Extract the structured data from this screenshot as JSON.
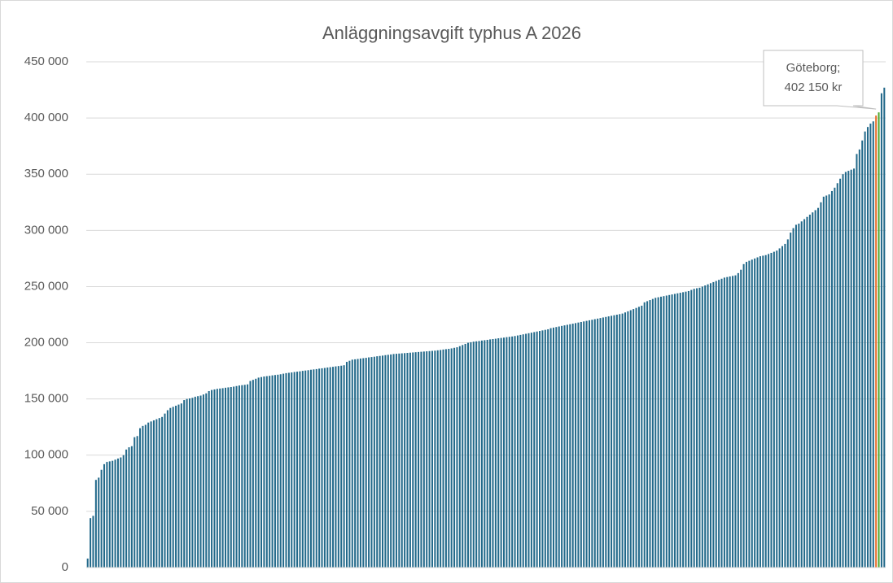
{
  "chart_data": {
    "type": "bar",
    "title": "Anläggningsavgift typhus A 2026",
    "values": [
      8000,
      44000,
      46000,
      78000,
      80000,
      87000,
      92000,
      94000,
      94500,
      95000,
      96000,
      97000,
      98000,
      100000,
      105000,
      107000,
      108000,
      116000,
      117000,
      124000,
      126000,
      127000,
      129000,
      130000,
      131000,
      132000,
      133000,
      134000,
      137000,
      140000,
      142000,
      143000,
      144000,
      145000,
      146000,
      149000,
      150000,
      150500,
      151000,
      152000,
      152500,
      153000,
      154000,
      155000,
      157000,
      158000,
      158500,
      159000,
      159300,
      159600,
      160000,
      160300,
      160600,
      161000,
      161500,
      162000,
      162300,
      162600,
      163000,
      166000,
      167000,
      168000,
      169000,
      169500,
      170000,
      170300,
      170600,
      171000,
      171300,
      171600,
      172000,
      172500,
      173000,
      173300,
      173600,
      174000,
      174300,
      174600,
      175000,
      175300,
      175600,
      176000,
      176300,
      176600,
      177000,
      177300,
      177600,
      178000,
      178300,
      178600,
      179000,
      179300,
      179600,
      180000,
      183000,
      184000,
      185000,
      185300,
      185600,
      186000,
      186300,
      186600,
      187000,
      187300,
      187600,
      188000,
      188300,
      188600,
      189000,
      189300,
      189600,
      190000,
      190200,
      190400,
      190600,
      190800,
      191000,
      191200,
      191400,
      191600,
      191800,
      192000,
      192200,
      192400,
      192600,
      192800,
      193000,
      193300,
      193600,
      194000,
      194300,
      194600,
      195000,
      195500,
      196000,
      197000,
      198000,
      199000,
      200000,
      200500,
      201000,
      201300,
      201600,
      202000,
      202300,
      202600,
      203000,
      203300,
      203600,
      204000,
      204300,
      204600,
      205000,
      205300,
      205600,
      206000,
      206500,
      207000,
      207500,
      208000,
      208500,
      209000,
      209500,
      210000,
      210500,
      211000,
      211500,
      212000,
      213000,
      213500,
      214000,
      214500,
      215000,
      215500,
      216000,
      216500,
      217000,
      217500,
      218000,
      218500,
      219000,
      219500,
      220000,
      220500,
      221000,
      221500,
      222000,
      222500,
      223000,
      223500,
      224000,
      224500,
      225000,
      225500,
      226000,
      227000,
      228000,
      229000,
      230000,
      231000,
      232000,
      233000,
      236000,
      237000,
      238000,
      239000,
      240000,
      240500,
      241000,
      241500,
      242000,
      242500,
      243000,
      243500,
      244000,
      244500,
      245000,
      245500,
      246000,
      247000,
      248000,
      248500,
      249000,
      250000,
      251000,
      252000,
      253000,
      254000,
      255000,
      256000,
      257000,
      258000,
      258500,
      259000,
      259500,
      260000,
      262000,
      265000,
      270000,
      272000,
      273000,
      274000,
      275000,
      276000,
      277000,
      277500,
      278000,
      279000,
      280000,
      281000,
      282000,
      284000,
      286000,
      288000,
      292000,
      298000,
      302000,
      305000,
      306000,
      308000,
      310000,
      312000,
      314000,
      316000,
      318000,
      320000,
      325000,
      330000,
      331000,
      332000,
      335000,
      338000,
      342000,
      346000,
      350000,
      352000,
      353000,
      354000,
      355000,
      368000,
      372000,
      380000,
      388000,
      392000,
      395000,
      397000,
      402150,
      405000,
      422000,
      427000
    ],
    "colors": [
      "#22698a",
      "#22698a",
      "#22698a",
      "#22698a",
      "#22698a",
      "#22698a",
      "#22698a",
      "#22698a",
      "#22698a",
      "#22698a",
      "#22698a",
      "#22698a",
      "#22698a",
      "#22698a",
      "#22698a",
      "#22698a",
      "#22698a",
      "#22698a",
      "#22698a",
      "#22698a",
      "#22698a",
      "#22698a",
      "#22698a",
      "#22698a",
      "#22698a",
      "#22698a",
      "#22698a",
      "#22698a",
      "#22698a",
      "#22698a",
      "#22698a",
      "#22698a",
      "#22698a",
      "#22698a",
      "#22698a",
      "#22698a",
      "#22698a",
      "#22698a",
      "#22698a",
      "#22698a",
      "#22698a",
      "#22698a",
      "#22698a",
      "#22698a",
      "#22698a",
      "#22698a",
      "#22698a",
      "#22698a",
      "#22698a",
      "#22698a",
      "#22698a",
      "#22698a",
      "#22698a",
      "#22698a",
      "#22698a",
      "#22698a",
      "#22698a",
      "#22698a",
      "#22698a",
      "#22698a",
      "#22698a",
      "#22698a",
      "#22698a",
      "#22698a",
      "#22698a",
      "#22698a",
      "#22698a",
      "#22698a",
      "#22698a",
      "#22698a",
      "#22698a",
      "#22698a",
      "#22698a",
      "#22698a",
      "#22698a",
      "#22698a",
      "#22698a",
      "#22698a",
      "#22698a",
      "#22698a",
      "#22698a",
      "#22698a",
      "#22698a",
      "#22698a",
      "#22698a",
      "#22698a",
      "#22698a",
      "#22698a",
      "#22698a",
      "#22698a",
      "#22698a",
      "#22698a",
      "#22698a",
      "#22698a",
      "#22698a",
      "#22698a",
      "#22698a",
      "#22698a",
      "#22698a",
      "#22698a",
      "#22698a",
      "#22698a",
      "#22698a",
      "#22698a",
      "#22698a",
      "#22698a",
      "#22698a",
      "#22698a",
      "#22698a",
      "#22698a",
      "#22698a",
      "#22698a",
      "#22698a",
      "#22698a",
      "#22698a",
      "#22698a",
      "#22698a",
      "#22698a",
      "#22698a",
      "#22698a",
      "#22698a",
      "#22698a",
      "#22698a",
      "#22698a",
      "#22698a",
      "#22698a",
      "#22698a",
      "#22698a",
      "#22698a",
      "#22698a",
      "#22698a",
      "#22698a",
      "#22698a",
      "#22698a",
      "#22698a",
      "#22698a",
      "#22698a",
      "#22698a",
      "#22698a",
      "#22698a",
      "#22698a",
      "#22698a",
      "#22698a",
      "#22698a",
      "#22698a",
      "#22698a",
      "#22698a",
      "#22698a",
      "#22698a",
      "#22698a",
      "#22698a",
      "#22698a",
      "#22698a",
      "#22698a",
      "#22698a",
      "#22698a",
      "#22698a",
      "#22698a",
      "#22698a",
      "#22698a",
      "#22698a",
      "#22698a",
      "#22698a",
      "#22698a",
      "#22698a",
      "#22698a",
      "#22698a",
      "#22698a",
      "#22698a",
      "#22698a",
      "#22698a",
      "#22698a",
      "#22698a",
      "#22698a",
      "#22698a",
      "#22698a",
      "#22698a",
      "#22698a",
      "#22698a",
      "#22698a",
      "#22698a",
      "#22698a",
      "#22698a",
      "#22698a",
      "#22698a",
      "#22698a",
      "#22698a",
      "#22698a",
      "#22698a",
      "#22698a",
      "#22698a",
      "#22698a",
      "#22698a",
      "#22698a",
      "#22698a",
      "#22698a",
      "#22698a",
      "#22698a",
      "#22698a",
      "#22698a",
      "#22698a",
      "#22698a",
      "#22698a",
      "#22698a",
      "#22698a",
      "#22698a",
      "#22698a",
      "#22698a",
      "#22698a",
      "#22698a",
      "#22698a",
      "#22698a",
      "#22698a",
      "#22698a",
      "#22698a",
      "#22698a",
      "#22698a",
      "#22698a",
      "#22698a",
      "#22698a",
      "#22698a",
      "#22698a",
      "#22698a",
      "#22698a",
      "#22698a",
      "#22698a",
      "#22698a",
      "#22698a",
      "#22698a",
      "#22698a",
      "#22698a",
      "#22698a",
      "#22698a",
      "#22698a",
      "#22698a",
      "#22698a",
      "#22698a",
      "#22698a",
      "#22698a",
      "#22698a",
      "#22698a",
      "#22698a",
      "#22698a",
      "#22698a",
      "#22698a",
      "#22698a",
      "#22698a",
      "#22698a",
      "#22698a",
      "#22698a",
      "#22698a",
      "#22698a",
      "#22698a",
      "#22698a",
      "#22698a",
      "#22698a",
      "#22698a",
      "#22698a",
      "#22698a",
      "#22698a",
      "#22698a",
      "#22698a",
      "#22698a",
      "#22698a",
      "#22698a",
      "#22698a",
      "#22698a",
      "#22698a",
      "#22698a",
      "#22698a",
      "#22698a",
      "#22698a",
      "#22698a",
      "#22698a",
      "#22698a",
      "#22698a",
      "#22698a",
      "#22698a",
      "#22698a",
      "#22698a",
      "#22698a",
      "#22698a",
      "#22698a",
      "#22698a",
      "#22698a",
      "#22698a",
      "#e97132",
      "#4ea72e",
      "#22698a",
      "#22698a"
    ],
    "annotation": [
      "Göteborg;",
      "402 150 kr"
    ],
    "ylim": [
      0,
      450000
    ],
    "yticks": [
      0,
      {
        "value": 50000,
        "label": "50 000"
      },
      {
        "value": 100000,
        "label": "100 000"
      },
      {
        "value": 150000,
        "label": "150 000"
      },
      {
        "value": 200000,
        "label": "200 000"
      },
      {
        "value": 250000,
        "label": "250 000"
      },
      {
        "value": 300000,
        "label": "300 000"
      },
      {
        "value": 350000,
        "label": "350 000"
      },
      {
        "value": 400000,
        "label": "400 000"
      },
      {
        "value": 450000,
        "label": "450 000"
      }
    ],
    "grid": true
  }
}
